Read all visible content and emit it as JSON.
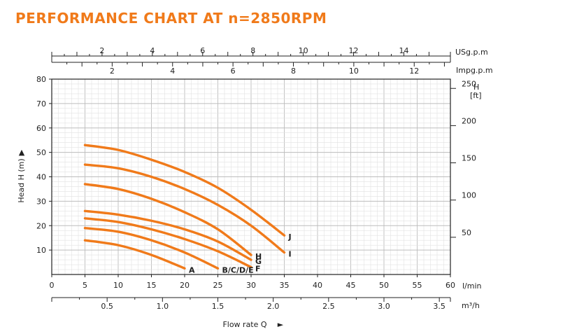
{
  "title": "PERFORMANCE CHART AT n=2850RPM",
  "chart_data": {
    "type": "line",
    "title": "PERFORMANCE CHART AT n=2850RPM",
    "x_axis": {
      "label": "l/min",
      "range": [
        0,
        60
      ],
      "ticks": [
        0,
        5,
        10,
        15,
        20,
        25,
        30,
        35,
        40,
        45,
        50,
        55,
        60
      ]
    },
    "y_axis": {
      "label": "Head H (m)",
      "arrow": "▲",
      "range": [
        0,
        80
      ],
      "ticks": [
        10,
        20,
        30,
        40,
        50,
        60,
        70,
        80
      ]
    },
    "y_axis_right": {
      "unit_top": "H",
      "unit_bottom": "[ft]",
      "ticks": [
        50,
        100,
        150,
        200,
        250
      ]
    },
    "top_axis_usgpm": {
      "label": "USg.p.m",
      "ticks": [
        2,
        4,
        6,
        8,
        10,
        12,
        14
      ]
    },
    "top_axis_impgpm": {
      "label": "Impg.p.m",
      "ticks": [
        2,
        4,
        6,
        8,
        10,
        12
      ]
    },
    "bottom_axis_m3h": {
      "label": "m³/h",
      "ticks": [
        "0.5",
        "1.0",
        "1.5",
        "2.0",
        "2.5",
        "3.0",
        "3.5"
      ]
    },
    "x_caption": "Flow rate Q",
    "x_caption_arrow": "►",
    "series": [
      {
        "name": "A",
        "x": [
          5,
          10,
          15,
          20
        ],
        "y": [
          14,
          12,
          8,
          2.5
        ]
      },
      {
        "name": "B/C/D/E",
        "x": [
          5,
          10,
          15,
          20,
          25
        ],
        "y": [
          19,
          17.5,
          14,
          9,
          2.5
        ]
      },
      {
        "name": "F",
        "x": [
          5,
          10,
          15,
          20,
          25,
          30
        ],
        "y": [
          23,
          21.5,
          18.5,
          14.5,
          9.5,
          3
        ]
      },
      {
        "name": "G",
        "x": [
          5,
          10,
          15,
          20,
          25,
          30
        ],
        "y": [
          26,
          24.5,
          22,
          18.5,
          13.5,
          6
        ]
      },
      {
        "name": "H",
        "x": [
          5,
          10,
          15,
          20,
          25,
          30
        ],
        "y": [
          37,
          35,
          31,
          25.5,
          18.5,
          8
        ]
      },
      {
        "name": "I",
        "x": [
          5,
          10,
          15,
          20,
          25,
          30,
          35
        ],
        "y": [
          45,
          43.5,
          40,
          35,
          28.5,
          20,
          9
        ]
      },
      {
        "name": "J",
        "x": [
          5,
          10,
          15,
          20,
          25,
          30,
          35
        ],
        "y": [
          53,
          51,
          47,
          42,
          35.5,
          26.5,
          16
        ]
      }
    ]
  },
  "colors": {
    "curve": "#f07a1a",
    "title": "#f07a1a",
    "grid_major": "#bdbdbd",
    "grid_minor": "#e2e2e2",
    "axis": "#222222"
  }
}
